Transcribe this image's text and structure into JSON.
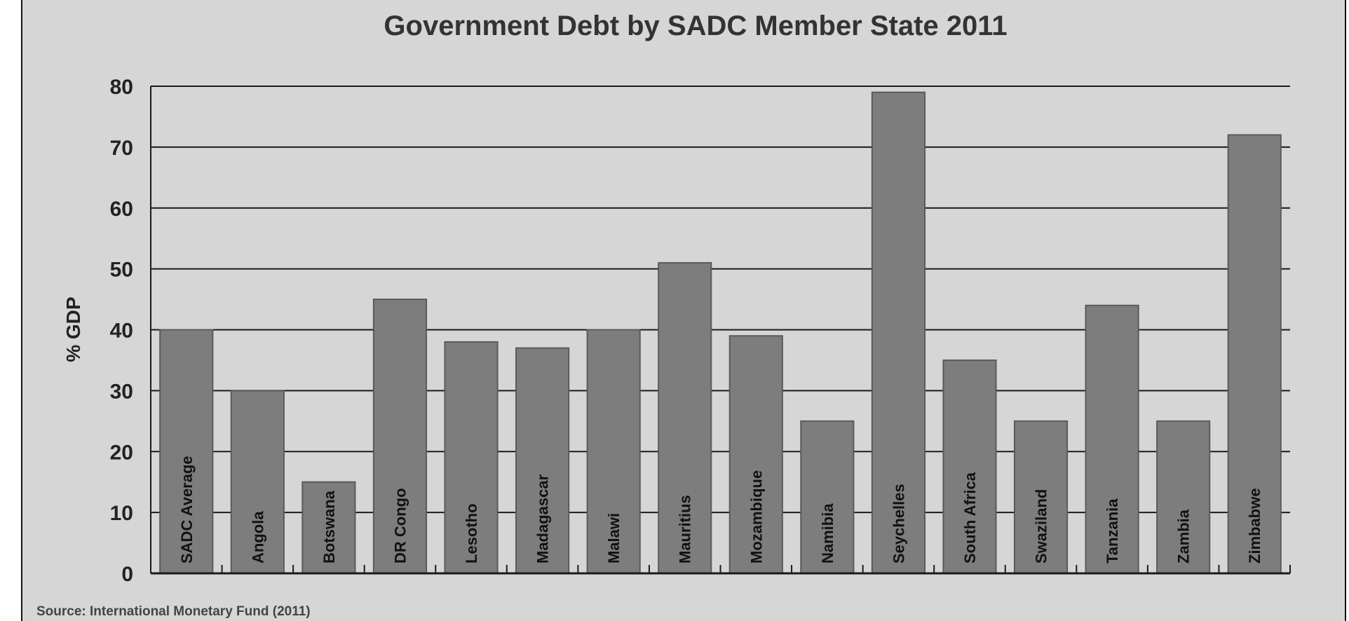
{
  "chart_data": {
    "type": "bar",
    "title": "Government Debt by SADC Member State 2011",
    "ylabel": "% GDP",
    "xlabel": "",
    "ylim": [
      0,
      80
    ],
    "yticks": [
      0,
      10,
      20,
      30,
      40,
      50,
      60,
      70,
      80
    ],
    "grid": true,
    "categories": [
      "SADC Average",
      "Angola",
      "Botswana",
      "DR Congo",
      "Lesotho",
      "Madagascar",
      "Malawi",
      "Mauritius",
      "Mozambique",
      "Namibia",
      "Seychelles",
      "South Africa",
      "Swaziland",
      "Tanzania",
      "Zambia",
      "Zimbabwe"
    ],
    "values": [
      40,
      30,
      15,
      45,
      38,
      37,
      40,
      51,
      39,
      25,
      79,
      35,
      25,
      44,
      25,
      72
    ],
    "source": "Source: International Monetary Fund (2011)"
  },
  "colors": {
    "background": "#d6d6d6",
    "bar": "#7d7d7d",
    "bar_stroke": "#5a5a5a",
    "grid": "#1a1a1a",
    "text": "#222222"
  }
}
